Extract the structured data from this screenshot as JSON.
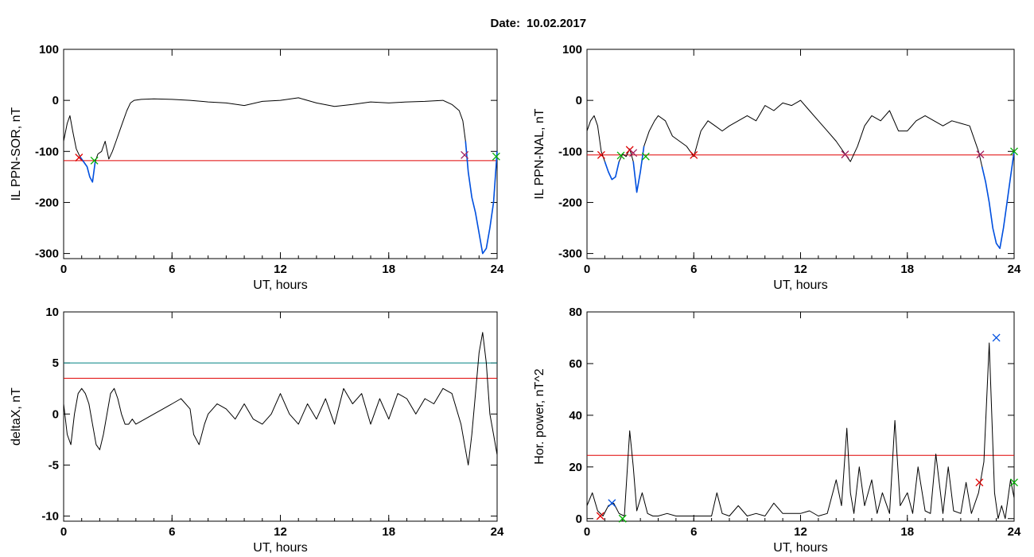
{
  "figure": {
    "date_label": "Date:",
    "date_value": "10.02.2017"
  },
  "chart_data": [
    {
      "id": "p1",
      "type": "line",
      "xlabel": "UT, hours",
      "ylabel": "IL PPN-SOR, nT",
      "xlim": [
        0,
        24
      ],
      "ylim": [
        -310,
        100
      ],
      "xticks": [
        0,
        6,
        12,
        18,
        24
      ],
      "yticks": [
        100,
        0,
        -100,
        -200,
        -300
      ],
      "hlines": [
        {
          "y": -118,
          "color": "#e00000"
        }
      ],
      "series": [
        {
          "color": "#000000",
          "x": [
            0,
            0.2,
            0.35,
            0.5,
            0.7,
            0.9,
            1.1,
            1.3,
            1.45,
            1.6,
            1.75,
            1.9,
            2.1,
            2.3,
            2.5,
            2.7,
            2.9,
            3.1,
            3.3,
            3.5,
            3.7,
            3.9,
            4.3,
            5,
            6,
            7,
            8,
            9,
            10,
            11,
            12,
            13,
            14,
            15,
            16,
            17,
            18,
            19,
            20,
            21,
            21.5,
            21.9,
            22.1,
            22.25,
            22.4,
            22.6,
            22.8,
            23,
            23.2,
            23.4,
            23.6,
            23.8,
            24
          ],
          "y": [
            -80,
            -45,
            -30,
            -60,
            -95,
            -110,
            -120,
            -130,
            -150,
            -160,
            -120,
            -105,
            -100,
            -80,
            -115,
            -100,
            -80,
            -60,
            -40,
            -20,
            -5,
            0,
            2,
            3,
            2,
            0,
            -3,
            -5,
            -10,
            -2,
            0,
            5,
            -5,
            -12,
            -8,
            -3,
            -5,
            -3,
            -2,
            0,
            -8,
            -20,
            -40,
            -80,
            -140,
            -190,
            -220,
            -260,
            -300,
            -290,
            -250,
            -200,
            -100
          ]
        },
        {
          "color": "#0050e0",
          "x": [
            0.9,
            1.1,
            1.3,
            1.45,
            1.6,
            1.75
          ],
          "y": [
            -110,
            -120,
            -130,
            -150,
            -160,
            -120
          ]
        },
        {
          "color": "#0050e0",
          "x": [
            22.25,
            22.4,
            22.6,
            22.8,
            23,
            23.2,
            23.4,
            23.6,
            23.8,
            24
          ],
          "y": [
            -80,
            -140,
            -190,
            -220,
            -260,
            -300,
            -290,
            -250,
            -200,
            -100
          ]
        }
      ],
      "markers": [
        {
          "x": 0.85,
          "y": -112,
          "color": "#e00000"
        },
        {
          "x": 1.7,
          "y": -118,
          "color": "#00b000"
        },
        {
          "x": 22.2,
          "y": -107,
          "color": "#a02060"
        },
        {
          "x": 23.95,
          "y": -110,
          "color": "#00b000"
        }
      ]
    },
    {
      "id": "p2",
      "type": "line",
      "xlabel": "UT, hours",
      "ylabel": "IL PPN-NAL, nT",
      "xlim": [
        0,
        24
      ],
      "ylim": [
        -310,
        100
      ],
      "xticks": [
        0,
        6,
        12,
        18,
        24
      ],
      "yticks": [
        100,
        0,
        -100,
        -200,
        -300
      ],
      "hlines": [
        {
          "y": -107,
          "color": "#e00000"
        }
      ],
      "series": [
        {
          "color": "#000000",
          "x": [
            0,
            0.2,
            0.4,
            0.6,
            0.8,
            1,
            1.2,
            1.4,
            1.6,
            1.8,
            2,
            2.2,
            2.4,
            2.6,
            2.8,
            3,
            3.2,
            3.5,
            3.8,
            4,
            4.4,
            4.8,
            5.2,
            5.6,
            6,
            6.4,
            6.8,
            7.2,
            7.6,
            8,
            8.5,
            9,
            9.5,
            10,
            10.5,
            11,
            11.5,
            12,
            12.5,
            13,
            13.5,
            14,
            14.5,
            14.8,
            15.2,
            15.6,
            16,
            16.5,
            17,
            17.5,
            18,
            18.5,
            19,
            19.5,
            20,
            20.5,
            21,
            21.5,
            22,
            22.2,
            22.4,
            22.6,
            22.8,
            23,
            23.2,
            23.4,
            23.6,
            23.8,
            24
          ],
          "y": [
            -60,
            -40,
            -30,
            -50,
            -100,
            -120,
            -140,
            -155,
            -150,
            -120,
            -105,
            -110,
            -95,
            -120,
            -180,
            -140,
            -90,
            -60,
            -40,
            -30,
            -40,
            -70,
            -80,
            -90,
            -110,
            -60,
            -40,
            -50,
            -60,
            -50,
            -40,
            -30,
            -40,
            -10,
            -20,
            -5,
            -10,
            0,
            -20,
            -40,
            -60,
            -80,
            -105,
            -120,
            -90,
            -50,
            -30,
            -40,
            -20,
            -60,
            -60,
            -40,
            -30,
            -40,
            -50,
            -40,
            -45,
            -50,
            -100,
            -130,
            -160,
            -200,
            -250,
            -280,
            -290,
            -250,
            -200,
            -150,
            -100
          ]
        },
        {
          "color": "#0050e0",
          "x": [
            1,
            1.2,
            1.4,
            1.6,
            1.8
          ],
          "y": [
            -120,
            -140,
            -155,
            -150,
            -120
          ]
        },
        {
          "color": "#0050e0",
          "x": [
            2.6,
            2.8,
            3,
            3.2
          ],
          "y": [
            -120,
            -180,
            -140,
            -90
          ]
        },
        {
          "color": "#0050e0",
          "x": [
            22.2,
            22.4,
            22.6,
            22.8,
            23,
            23.2,
            23.4,
            23.6,
            23.8,
            24
          ],
          "y": [
            -130,
            -160,
            -200,
            -250,
            -280,
            -290,
            -250,
            -200,
            -150,
            -100
          ]
        }
      ],
      "markers": [
        {
          "x": 0.8,
          "y": -107,
          "color": "#e00000"
        },
        {
          "x": 1.9,
          "y": -108,
          "color": "#00b000"
        },
        {
          "x": 2.4,
          "y": -97,
          "color": "#e00000"
        },
        {
          "x": 2.6,
          "y": -103,
          "color": "#a02060"
        },
        {
          "x": 3.3,
          "y": -110,
          "color": "#00b000"
        },
        {
          "x": 6.0,
          "y": -107,
          "color": "#e00000"
        },
        {
          "x": 14.5,
          "y": -106,
          "color": "#a02060"
        },
        {
          "x": 22.1,
          "y": -106,
          "color": "#a02060"
        },
        {
          "x": 24.0,
          "y": -100,
          "color": "#00b000"
        }
      ]
    },
    {
      "id": "p3",
      "type": "line",
      "xlabel": "UT, hours",
      "ylabel": "deltaX, nT",
      "xlim": [
        0,
        24
      ],
      "ylim": [
        -10.5,
        10
      ],
      "xticks": [
        0,
        6,
        12,
        18,
        24
      ],
      "yticks": [
        10,
        5,
        0,
        -5,
        -10
      ],
      "hlines": [
        {
          "y": 5,
          "color": "#008080"
        },
        {
          "y": 3.5,
          "color": "#e00000"
        }
      ],
      "series": [
        {
          "color": "#000000",
          "x": [
            0,
            0.2,
            0.4,
            0.6,
            0.8,
            1,
            1.2,
            1.4,
            1.6,
            1.8,
            2,
            2.2,
            2.4,
            2.6,
            2.8,
            3,
            3.2,
            3.4,
            3.6,
            3.8,
            4,
            4.5,
            5,
            5.5,
            6,
            6.5,
            7,
            7.2,
            7.5,
            7.8,
            8,
            8.5,
            9,
            9.5,
            10,
            10.5,
            11,
            11.5,
            12,
            12.5,
            13,
            13.5,
            14,
            14.5,
            15,
            15.5,
            16,
            16.5,
            17,
            17.5,
            18,
            18.5,
            19,
            19.5,
            20,
            20.5,
            21,
            21.5,
            22,
            22.2,
            22.4,
            22.6,
            22.8,
            23,
            23.2,
            23.4,
            23.6,
            23.8,
            24
          ],
          "y": [
            1,
            -2,
            -3,
            0,
            2,
            2.5,
            2,
            1,
            -1,
            -3,
            -3.5,
            -2,
            0,
            2,
            2.5,
            1.5,
            0,
            -1,
            -1,
            -0.5,
            -1,
            -0.5,
            0,
            0.5,
            1,
            1.5,
            0.5,
            -2,
            -3,
            -1,
            0,
            1,
            0.5,
            -0.5,
            1,
            -0.5,
            -1,
            0,
            2,
            0,
            -1,
            1,
            -0.5,
            1.5,
            -1,
            2.5,
            1,
            2,
            -1,
            1.5,
            -0.5,
            2,
            1.5,
            0,
            1.5,
            1,
            2.5,
            2,
            -1,
            -3,
            -5,
            -2,
            2,
            6,
            8,
            5,
            0,
            -2,
            -4
          ]
        }
      ],
      "markers": []
    },
    {
      "id": "p4",
      "type": "line",
      "xlabel": "UT, hours",
      "ylabel": "Hor. power, nT^2",
      "xlim": [
        0,
        24
      ],
      "ylim": [
        -1,
        80
      ],
      "xticks": [
        0,
        6,
        12,
        18,
        24
      ],
      "yticks": [
        80,
        60,
        40,
        20,
        0
      ],
      "hlines": [
        {
          "y": 24.5,
          "color": "#e00000"
        }
      ],
      "series": [
        {
          "color": "#000000",
          "x": [
            0,
            0.3,
            0.6,
            0.9,
            1.2,
            1.5,
            1.8,
            2.1,
            2.4,
            2.6,
            2.8,
            3.1,
            3.4,
            3.7,
            4,
            4.5,
            5,
            6,
            7,
            7.3,
            7.6,
            8,
            8.5,
            9,
            9.5,
            10,
            10.5,
            11,
            11.5,
            12,
            12.5,
            13,
            13.5,
            14,
            14.3,
            14.6,
            14.8,
            15,
            15.3,
            15.6,
            16,
            16.3,
            16.6,
            17,
            17.3,
            17.6,
            18,
            18.3,
            18.6,
            19,
            19.3,
            19.6,
            20,
            20.3,
            20.6,
            21,
            21.3,
            21.6,
            22,
            22.3,
            22.6,
            22.9,
            23.1,
            23.3,
            23.5,
            23.8,
            24
          ],
          "y": [
            5,
            10,
            3,
            1,
            5,
            6,
            2,
            1,
            34,
            20,
            3,
            10,
            2,
            1,
            1,
            2,
            1,
            1,
            1,
            10,
            2,
            1,
            5,
            1,
            2,
            1,
            6,
            2,
            2,
            2,
            3,
            1,
            2,
            15,
            5,
            35,
            10,
            2,
            20,
            5,
            15,
            2,
            10,
            2,
            38,
            5,
            10,
            2,
            20,
            3,
            2,
            25,
            2,
            20,
            3,
            2,
            14,
            2,
            10,
            22,
            68,
            10,
            0,
            5,
            0,
            15,
            8
          ]
        }
      ],
      "markers": [
        {
          "x": 0.75,
          "y": 1,
          "color": "#e00000"
        },
        {
          "x": 1.4,
          "y": 6,
          "color": "#0050e0"
        },
        {
          "x": 2.0,
          "y": 0,
          "color": "#00b000"
        },
        {
          "x": 22.05,
          "y": 14,
          "color": "#e00000"
        },
        {
          "x": 23.0,
          "y": 70,
          "color": "#0050e0"
        },
        {
          "x": 24.0,
          "y": 14,
          "color": "#00b000"
        }
      ]
    }
  ]
}
